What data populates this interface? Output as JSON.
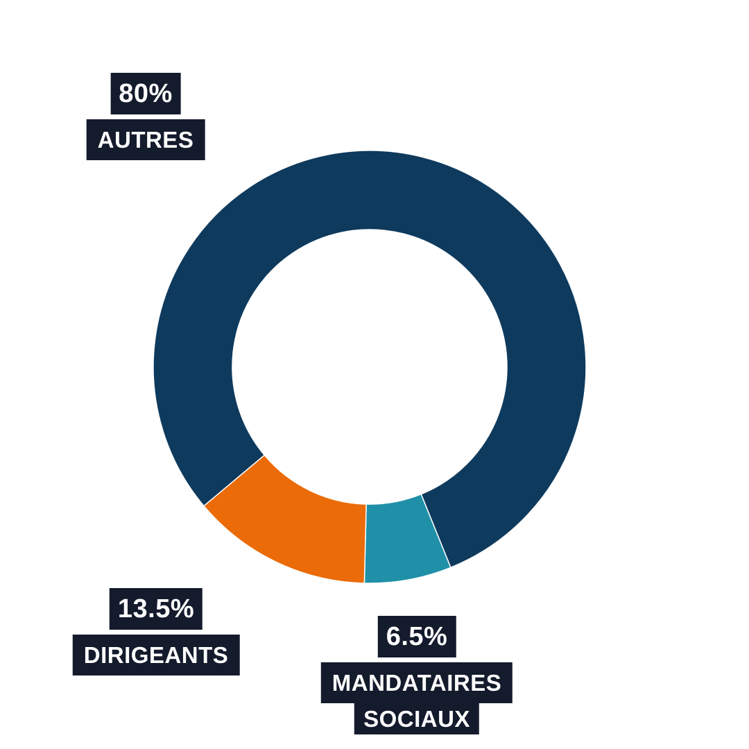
{
  "chart_data": {
    "type": "pie",
    "donut": true,
    "categories": [
      "AUTRES",
      "MANDATAIRES SOCIAUX",
      "DIRIGEANTS"
    ],
    "values": [
      80,
      6.5,
      13.5
    ],
    "value_labels": [
      "80%",
      "6.5%",
      "13.5%"
    ],
    "slice_colors": [
      "#0E3A5D",
      "#1F90A8",
      "#EA6B08"
    ],
    "start_angle_deg_clockwise_from_top": 230,
    "inner_radius_ratio": 0.635,
    "legend_position": "none",
    "labels_position": "outside-boxed"
  },
  "labels": {
    "autres": {
      "pct": "80%",
      "name": "AUTRES"
    },
    "dirigeants": {
      "pct": "13.5%",
      "name": "DIRIGEANTS"
    },
    "mandataires": {
      "pct": "6.5%",
      "line1": "MANDATAIRES",
      "line2": "SOCIAUX"
    }
  },
  "colors": {
    "background": "#FFFFFF",
    "navy": "#0E3A5D",
    "teal": "#1F90A8",
    "orange": "#EA6B08",
    "label_bg": "#141B2C",
    "label_text": "#FFFFFF",
    "segment_separator": "#FFFFFF"
  }
}
